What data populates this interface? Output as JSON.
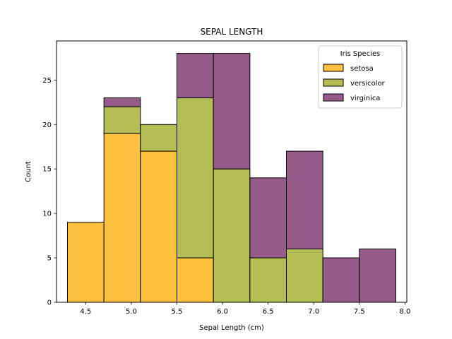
{
  "chart_data": {
    "type": "bar",
    "title": "SEPAL LENGTH",
    "xlabel": "Sepal Length (cm)",
    "ylabel": "Count",
    "bin_edges": [
      4.3,
      4.7,
      5.1,
      5.5,
      5.9,
      6.3,
      6.7,
      7.1,
      7.5,
      7.9
    ],
    "xlim": [
      4.18,
      8.02
    ],
    "ylim": [
      0,
      29.4
    ],
    "xticks": [
      "4.5",
      "5.0",
      "5.5",
      "6.0",
      "6.5",
      "7.0",
      "7.5",
      "8.0"
    ],
    "xtick_values": [
      4.5,
      5.0,
      5.5,
      6.0,
      6.5,
      7.0,
      7.5,
      8.0
    ],
    "yticks": [
      "0",
      "5",
      "10",
      "15",
      "20",
      "25"
    ],
    "ytick_values": [
      0,
      5,
      10,
      15,
      20,
      25
    ],
    "stacked": true,
    "grid": false,
    "legend": {
      "title": "Iris Species",
      "placement": "top-right"
    },
    "series": [
      {
        "name": "setosa",
        "color": "#fbc13f",
        "values": [
          9,
          19,
          17,
          5,
          0,
          0,
          0,
          0,
          0
        ]
      },
      {
        "name": "versicolor",
        "color": "#b5bd55",
        "values": [
          0,
          3,
          3,
          18,
          15,
          5,
          6,
          0,
          0
        ]
      },
      {
        "name": "virginica",
        "color": "#955c8a",
        "values": [
          0,
          1,
          0,
          5,
          13,
          9,
          11,
          5,
          6
        ]
      }
    ]
  }
}
